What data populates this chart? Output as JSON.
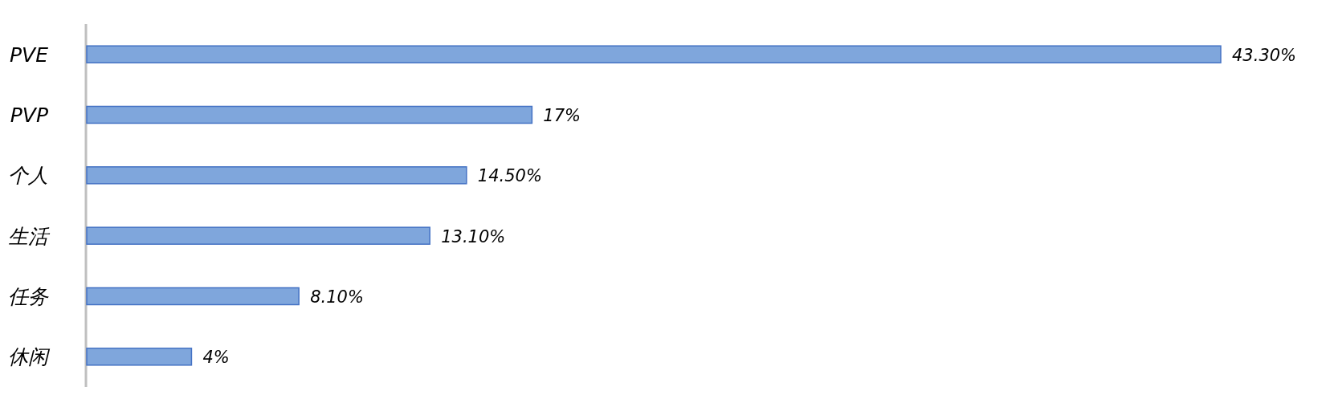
{
  "chart_data": {
    "type": "bar",
    "orientation": "horizontal",
    "categories": [
      "PVE",
      "PVP",
      "个人",
      "生活",
      "任务",
      "休闲"
    ],
    "values": [
      43.3,
      17,
      14.5,
      13.1,
      8.1,
      4
    ],
    "value_labels": [
      "43.30%",
      "17%",
      "14.50%",
      "13.10%",
      "8.10%",
      "4%"
    ],
    "color": "#7fa6dc"
  }
}
